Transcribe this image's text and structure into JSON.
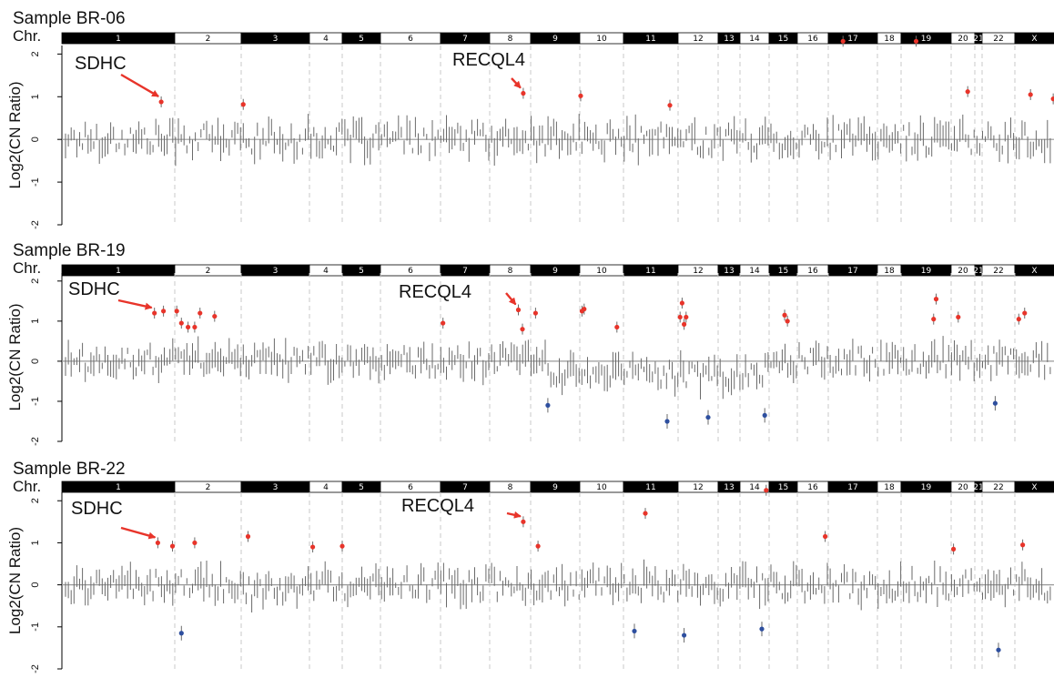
{
  "chromosomes": [
    "1",
    "2",
    "3",
    "4",
    "5",
    "6",
    "7",
    "8",
    "9",
    "10",
    "11",
    "12",
    "13",
    "14",
    "15",
    "16",
    "17",
    "18",
    "19",
    "20",
    "21",
    "22",
    "X"
  ],
  "chr_label": "Chr.",
  "y_axis_label": "Log2(CN Ratio)",
  "y_ticks": [
    "2",
    "1",
    "0",
    "-1",
    "-2"
  ],
  "ylim": [
    -2,
    2.2
  ],
  "colors": {
    "gain": "#e8342a",
    "loss": "#2e4f9f",
    "neutral": "#6a6a6a",
    "band_dark": "#000000",
    "band_light": "#ffffff",
    "baseline": "#999999",
    "chrom_divider": "#c8c8c8"
  },
  "chart_data": [
    {
      "type": "scatter",
      "title": "Sample BR-06",
      "ylabel": "Log2(CN Ratio)",
      "annotations": [
        {
          "text": "SDHC",
          "chr": "1"
        },
        {
          "text": "RECQL4",
          "chr": "8"
        }
      ],
      "gains": [
        {
          "chr": "1",
          "pos": 0.88,
          "y": 0.88
        },
        {
          "chr": "3",
          "pos": 0.03,
          "y": 0.82
        },
        {
          "chr": "8",
          "pos": 0.82,
          "y": 1.08
        },
        {
          "chr": "10",
          "pos": 0.02,
          "y": 1.02
        },
        {
          "chr": "11",
          "pos": 0.85,
          "y": 0.8
        },
        {
          "chr": "17",
          "pos": 0.3,
          "y": 2.3
        },
        {
          "chr": "19",
          "pos": 0.3,
          "y": 2.3
        },
        {
          "chr": "20",
          "pos": 0.7,
          "y": 1.12
        },
        {
          "chr": "X",
          "pos": 0.4,
          "y": 1.05
        },
        {
          "chr": "X",
          "pos": 0.98,
          "y": 0.95
        }
      ],
      "losses": []
    },
    {
      "type": "scatter",
      "title": "Sample BR-19",
      "ylabel": "Log2(CN Ratio)",
      "annotations": [
        {
          "text": "SDHC",
          "chr": "1"
        },
        {
          "text": "RECQL4",
          "chr": "8"
        }
      ],
      "gains": [
        {
          "chr": "1",
          "pos": 0.82,
          "y": 1.2
        },
        {
          "chr": "1",
          "pos": 0.9,
          "y": 1.25
        },
        {
          "chr": "2",
          "pos": 0.03,
          "y": 1.25
        },
        {
          "chr": "2",
          "pos": 0.1,
          "y": 0.95
        },
        {
          "chr": "2",
          "pos": 0.2,
          "y": 0.85
        },
        {
          "chr": "2",
          "pos": 0.3,
          "y": 0.85
        },
        {
          "chr": "2",
          "pos": 0.38,
          "y": 1.2
        },
        {
          "chr": "2",
          "pos": 0.6,
          "y": 1.12
        },
        {
          "chr": "7",
          "pos": 0.05,
          "y": 0.95
        },
        {
          "chr": "8",
          "pos": 0.7,
          "y": 1.28
        },
        {
          "chr": "8",
          "pos": 0.8,
          "y": 0.8
        },
        {
          "chr": "9",
          "pos": 0.1,
          "y": 1.2
        },
        {
          "chr": "10",
          "pos": 0.05,
          "y": 1.25
        },
        {
          "chr": "10",
          "pos": 0.1,
          "y": 1.3
        },
        {
          "chr": "10",
          "pos": 0.85,
          "y": 0.85
        },
        {
          "chr": "12",
          "pos": 0.1,
          "y": 1.45
        },
        {
          "chr": "12",
          "pos": 0.05,
          "y": 1.1
        },
        {
          "chr": "12",
          "pos": 0.2,
          "y": 1.1
        },
        {
          "chr": "12",
          "pos": 0.15,
          "y": 0.92
        },
        {
          "chr": "15",
          "pos": 0.55,
          "y": 1.15
        },
        {
          "chr": "15",
          "pos": 0.65,
          "y": 1.0
        },
        {
          "chr": "19",
          "pos": 0.7,
          "y": 1.55
        },
        {
          "chr": "19",
          "pos": 0.65,
          "y": 1.05
        },
        {
          "chr": "20",
          "pos": 0.3,
          "y": 1.1
        },
        {
          "chr": "X",
          "pos": 0.1,
          "y": 1.05
        },
        {
          "chr": "X",
          "pos": 0.25,
          "y": 1.2
        }
      ],
      "losses": [
        {
          "chr": "9",
          "pos": 0.35,
          "y": -1.1
        },
        {
          "chr": "11",
          "pos": 0.8,
          "y": -1.5
        },
        {
          "chr": "12",
          "pos": 0.75,
          "y": -1.4
        },
        {
          "chr": "14",
          "pos": 0.85,
          "y": -1.35
        },
        {
          "chr": "22",
          "pos": 0.4,
          "y": -1.05
        }
      ]
    },
    {
      "type": "scatter",
      "title": "Sample BR-22",
      "ylabel": "Log2(CN Ratio)",
      "annotations": [
        {
          "text": "SDHC",
          "chr": "1"
        },
        {
          "text": "RECQL4",
          "chr": "8"
        }
      ],
      "gains": [
        {
          "chr": "1",
          "pos": 0.85,
          "y": 1.0
        },
        {
          "chr": "1",
          "pos": 0.98,
          "y": 0.92
        },
        {
          "chr": "2",
          "pos": 0.3,
          "y": 1.0
        },
        {
          "chr": "3",
          "pos": 0.1,
          "y": 1.15
        },
        {
          "chr": "4",
          "pos": 0.1,
          "y": 0.9
        },
        {
          "chr": "5",
          "pos": 0.0,
          "y": 0.92
        },
        {
          "chr": "8",
          "pos": 0.82,
          "y": 1.5
        },
        {
          "chr": "9",
          "pos": 0.15,
          "y": 0.92
        },
        {
          "chr": "11",
          "pos": 0.4,
          "y": 1.7
        },
        {
          "chr": "14",
          "pos": 0.9,
          "y": 2.25
        },
        {
          "chr": "16",
          "pos": 0.9,
          "y": 1.15
        },
        {
          "chr": "20",
          "pos": 0.1,
          "y": 0.85
        },
        {
          "chr": "X",
          "pos": 0.2,
          "y": 0.95
        }
      ],
      "losses": [
        {
          "chr": "2",
          "pos": 0.1,
          "y": -1.15
        },
        {
          "chr": "11",
          "pos": 0.2,
          "y": -1.1
        },
        {
          "chr": "12",
          "pos": 0.15,
          "y": -1.2
        },
        {
          "chr": "14",
          "pos": 0.75,
          "y": -1.05
        },
        {
          "chr": "22",
          "pos": 0.5,
          "y": -1.55
        }
      ]
    }
  ]
}
